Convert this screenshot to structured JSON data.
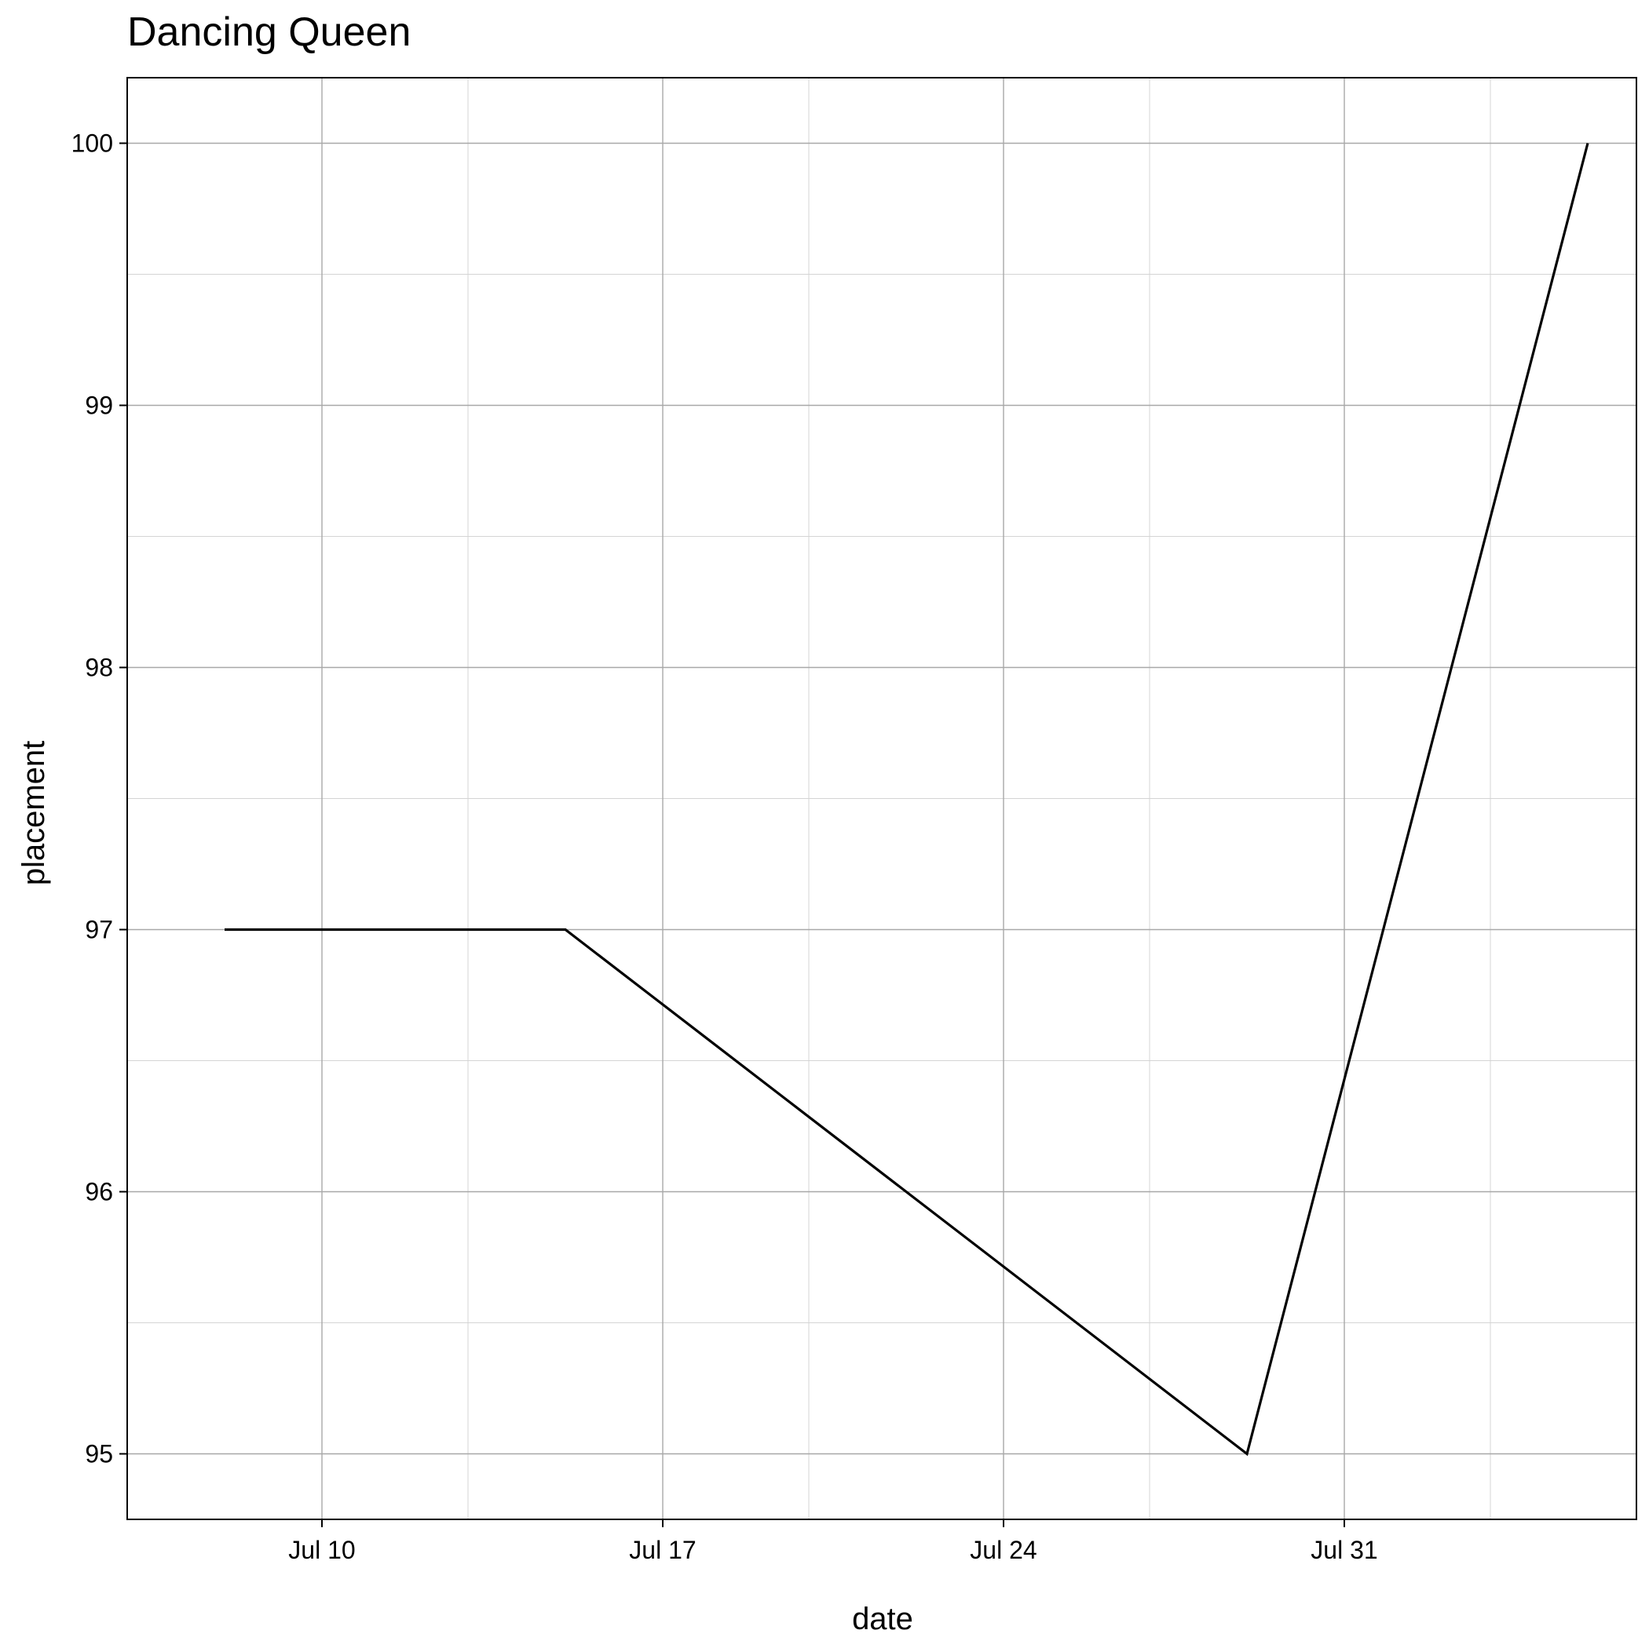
{
  "chart_data": {
    "type": "line",
    "title": "Dancing Queen",
    "xlabel": "date",
    "ylabel": "placement",
    "x_type": "date",
    "xlim": [
      "2021-07-06",
      "2021-08-06"
    ],
    "ylim": [
      94.75,
      100.25
    ],
    "x_ticks": [
      {
        "date": "2021-07-10",
        "label": "Jul 10"
      },
      {
        "date": "2021-07-17",
        "label": "Jul 17"
      },
      {
        "date": "2021-07-24",
        "label": "Jul 24"
      },
      {
        "date": "2021-07-31",
        "label": "Jul 31"
      }
    ],
    "x_minor_ticks": [
      "2021-07-13",
      "2021-07-20",
      "2021-07-27",
      "2021-08-03"
    ],
    "y_ticks": [
      95,
      96,
      97,
      98,
      99,
      100
    ],
    "y_minor_ticks": [
      95.5,
      96.5,
      97.5,
      98.5,
      99.5
    ],
    "grid": true,
    "legend": "none",
    "series": [
      {
        "color": "#000000",
        "points": [
          {
            "x": "2021-07-08",
            "y": 97
          },
          {
            "x": "2021-07-15",
            "y": 97
          },
          {
            "x": "2021-07-29",
            "y": 95
          },
          {
            "x": "2021-08-05",
            "y": 100
          }
        ]
      }
    ]
  }
}
